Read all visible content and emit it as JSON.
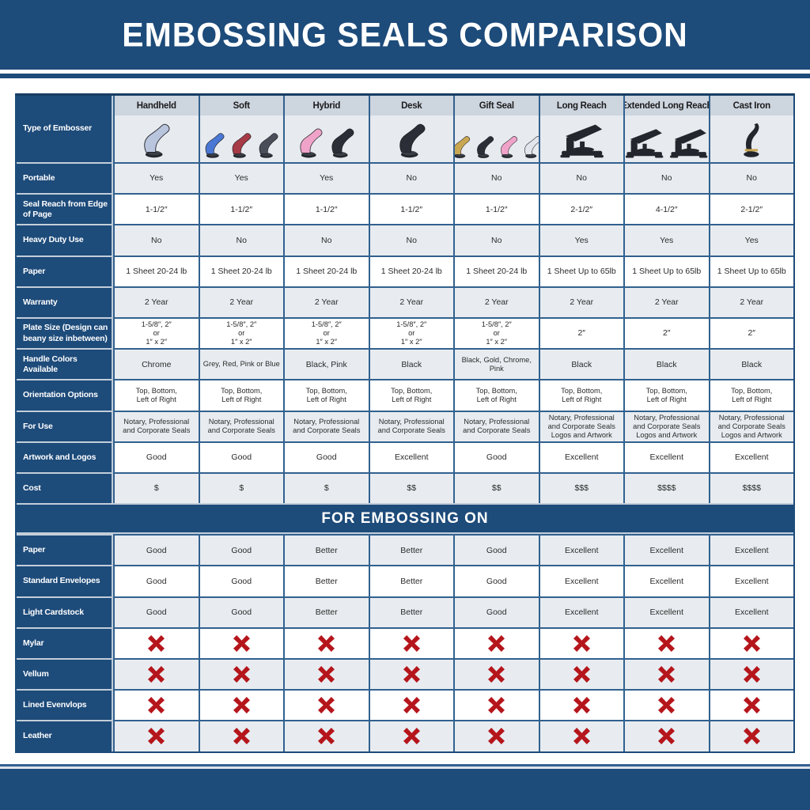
{
  "title": "EMBOSSING SEALS COMPARISON",
  "colors": {
    "navy": "#1d4b7a",
    "cell_border_blue": "#31618f",
    "label_separator": "#c3ced9",
    "row_gray": "#e8ecf0",
    "header_strip": "#cdd5df",
    "image_row_bg": "#e7eaee",
    "x_red": "#b5161c"
  },
  "chart_data": {
    "type": "table",
    "title": "EMBOSSING SEALS COMPARISON",
    "row_header_label": "Type of Embosser",
    "columns": [
      "Handheld",
      "Soft",
      "Hybrid",
      "Desk",
      "Gift Seal",
      "Long Reach",
      "Extended Long Reach",
      "Cast Iron"
    ],
    "spec_rows": [
      {
        "label": "Portable",
        "values": [
          "Yes",
          "Yes",
          "Yes",
          "No",
          "No",
          "No",
          "No",
          "No"
        ]
      },
      {
        "label": "Seal Reach from Edge of Page",
        "values": [
          "1-1/2″",
          "1-1/2″",
          "1-1/2″",
          "1-1/2″",
          "1-1/2″",
          "2-1/2″",
          "4-1/2″",
          "2-1/2″"
        ]
      },
      {
        "label": "Heavy Duty Use",
        "values": [
          "No",
          "No",
          "No",
          "No",
          "No",
          "Yes",
          "Yes",
          "Yes"
        ]
      },
      {
        "label": "Paper",
        "values": [
          "1 Sheet 20-24 lb",
          "1 Sheet 20-24 lb",
          "1 Sheet 20-24 lb",
          "1 Sheet 20-24 lb",
          "1 Sheet 20-24 lb",
          "1 Sheet Up to 65lb",
          "1 Sheet Up to 65lb",
          "1 Sheet Up to 65lb"
        ]
      },
      {
        "label": "Warranty",
        "values": [
          "2 Year",
          "2 Year",
          "2 Year",
          "2 Year",
          "2 Year",
          "2 Year",
          "2 Year",
          "2 Year"
        ]
      },
      {
        "label": "Plate Size (Design can beany size inbetween)",
        "values": [
          "1-5/8″, 2″\nor\n1″ x 2″",
          "1-5/8″, 2″\nor\n1″ x 2″",
          "1-5/8″, 2″\nor\n1″ x 2″",
          "1-5/8″, 2″\nor\n1″ x 2″",
          "1-5/8″, 2″\nor\n1″ x 2″",
          "2″",
          "2″",
          "2″"
        ]
      },
      {
        "label": "Handle Colors Available",
        "values": [
          "Chrome",
          "Grey, Red, Pink or Blue",
          "Black, Pink",
          "Black",
          "Black, Gold, Chrome, Pink",
          "Black",
          "Black",
          "Black"
        ]
      },
      {
        "label": "Orientation Options",
        "values": [
          "Top, Bottom,\nLeft of Right",
          "Top, Bottom,\nLeft of Right",
          "Top, Bottom,\nLeft of Right",
          "Top, Bottom,\nLeft of Right",
          "Top, Bottom,\nLeft of Right",
          "Top, Bottom,\nLeft of Right",
          "Top, Bottom,\nLeft of Right",
          "Top, Bottom,\nLeft of Right"
        ]
      },
      {
        "label": "For Use",
        "values": [
          "Notary, Professional\nand Corporate Seals",
          "Notary, Professional\nand Corporate Seals",
          "Notary, Professional\nand Corporate Seals",
          "Notary, Professional\nand Corporate Seals",
          "Notary, Professional\nand Corporate Seals",
          "Notary, Professional\nand Corporate Seals\nLogos and Artwork",
          "Notary, Professional\nand Corporate Seals\nLogos and Artwork",
          "Notary, Professional\nand Corporate Seals\nLogos and Artwork"
        ]
      },
      {
        "label": "Artwork and Logos",
        "values": [
          "Good",
          "Good",
          "Good",
          "Excellent",
          "Good",
          "Excellent",
          "Excellent",
          "Excellent"
        ]
      },
      {
        "label": "Cost",
        "values": [
          "$",
          "$",
          "$",
          "$$",
          "$$",
          "$$$",
          "$$$$",
          "$$$$"
        ]
      }
    ],
    "embossing_section_title": "FOR EMBOSSING ON",
    "embossing_rows": [
      {
        "label": "Paper",
        "values": [
          "Good",
          "Good",
          "Better",
          "Better",
          "Good",
          "Excellent",
          "Excellent",
          "Excellent"
        ]
      },
      {
        "label": "Standard Envelopes",
        "values": [
          "Good",
          "Good",
          "Better",
          "Better",
          "Good",
          "Excellent",
          "Excellent",
          "Excellent"
        ]
      },
      {
        "label": "Light Cardstock",
        "values": [
          "Good",
          "Good",
          "Better",
          "Better",
          "Good",
          "Excellent",
          "Excellent",
          "Excellent"
        ]
      },
      {
        "label": "Mylar",
        "values": [
          "X",
          "X",
          "X",
          "X",
          "X",
          "X",
          "X",
          "X"
        ]
      },
      {
        "label": "Vellum",
        "values": [
          "X",
          "X",
          "X",
          "X",
          "X",
          "X",
          "X",
          "X"
        ]
      },
      {
        "label": "Lined Evenvlops",
        "values": [
          "X",
          "X",
          "X",
          "X",
          "X",
          "X",
          "X",
          "X"
        ]
      },
      {
        "label": "Leather",
        "values": [
          "X",
          "X",
          "X",
          "X",
          "X",
          "X",
          "X",
          "X"
        ]
      }
    ],
    "x_marker": "red-x-icon"
  },
  "embosser_images": [
    {
      "column": "Handheld",
      "icon": "handheld-embosser-image",
      "shape": "clamp",
      "handle_colors": [
        "#b9c4dd"
      ]
    },
    {
      "column": "Soft",
      "icon": "soft-embosser-image",
      "shape": "clamp",
      "handle_colors": [
        "#4a77d4",
        "#a63a46",
        "#494e59"
      ]
    },
    {
      "column": "Hybrid",
      "icon": "hybrid-embosser-image",
      "shape": "clamp",
      "handle_colors": [
        "#f0a3c9",
        "#2b2e36"
      ]
    },
    {
      "column": "Desk",
      "icon": "desk-embosser-image",
      "shape": "clamp",
      "handle_colors": [
        "#2b2e36"
      ]
    },
    {
      "column": "Gift Seal",
      "icon": "gift-seal-embosser-image",
      "shape": "clamp",
      "handle_colors": [
        "#c9a651",
        "#2b2e36",
        "#f0a3c9",
        "#e2e5ec"
      ]
    },
    {
      "column": "Long Reach",
      "icon": "long-reach-embosser-image",
      "shape": "press",
      "handle_colors": [
        "#23262c"
      ]
    },
    {
      "column": "Extended Long Reach",
      "icon": "extended-long-reach-embosser-image",
      "shape": "press",
      "handle_colors": [
        "#23262c",
        "#23262c"
      ]
    },
    {
      "column": "Cast Iron",
      "icon": "cast-iron-embosser-image",
      "shape": "cast",
      "handle_colors": [
        "#23262c"
      ]
    }
  ]
}
